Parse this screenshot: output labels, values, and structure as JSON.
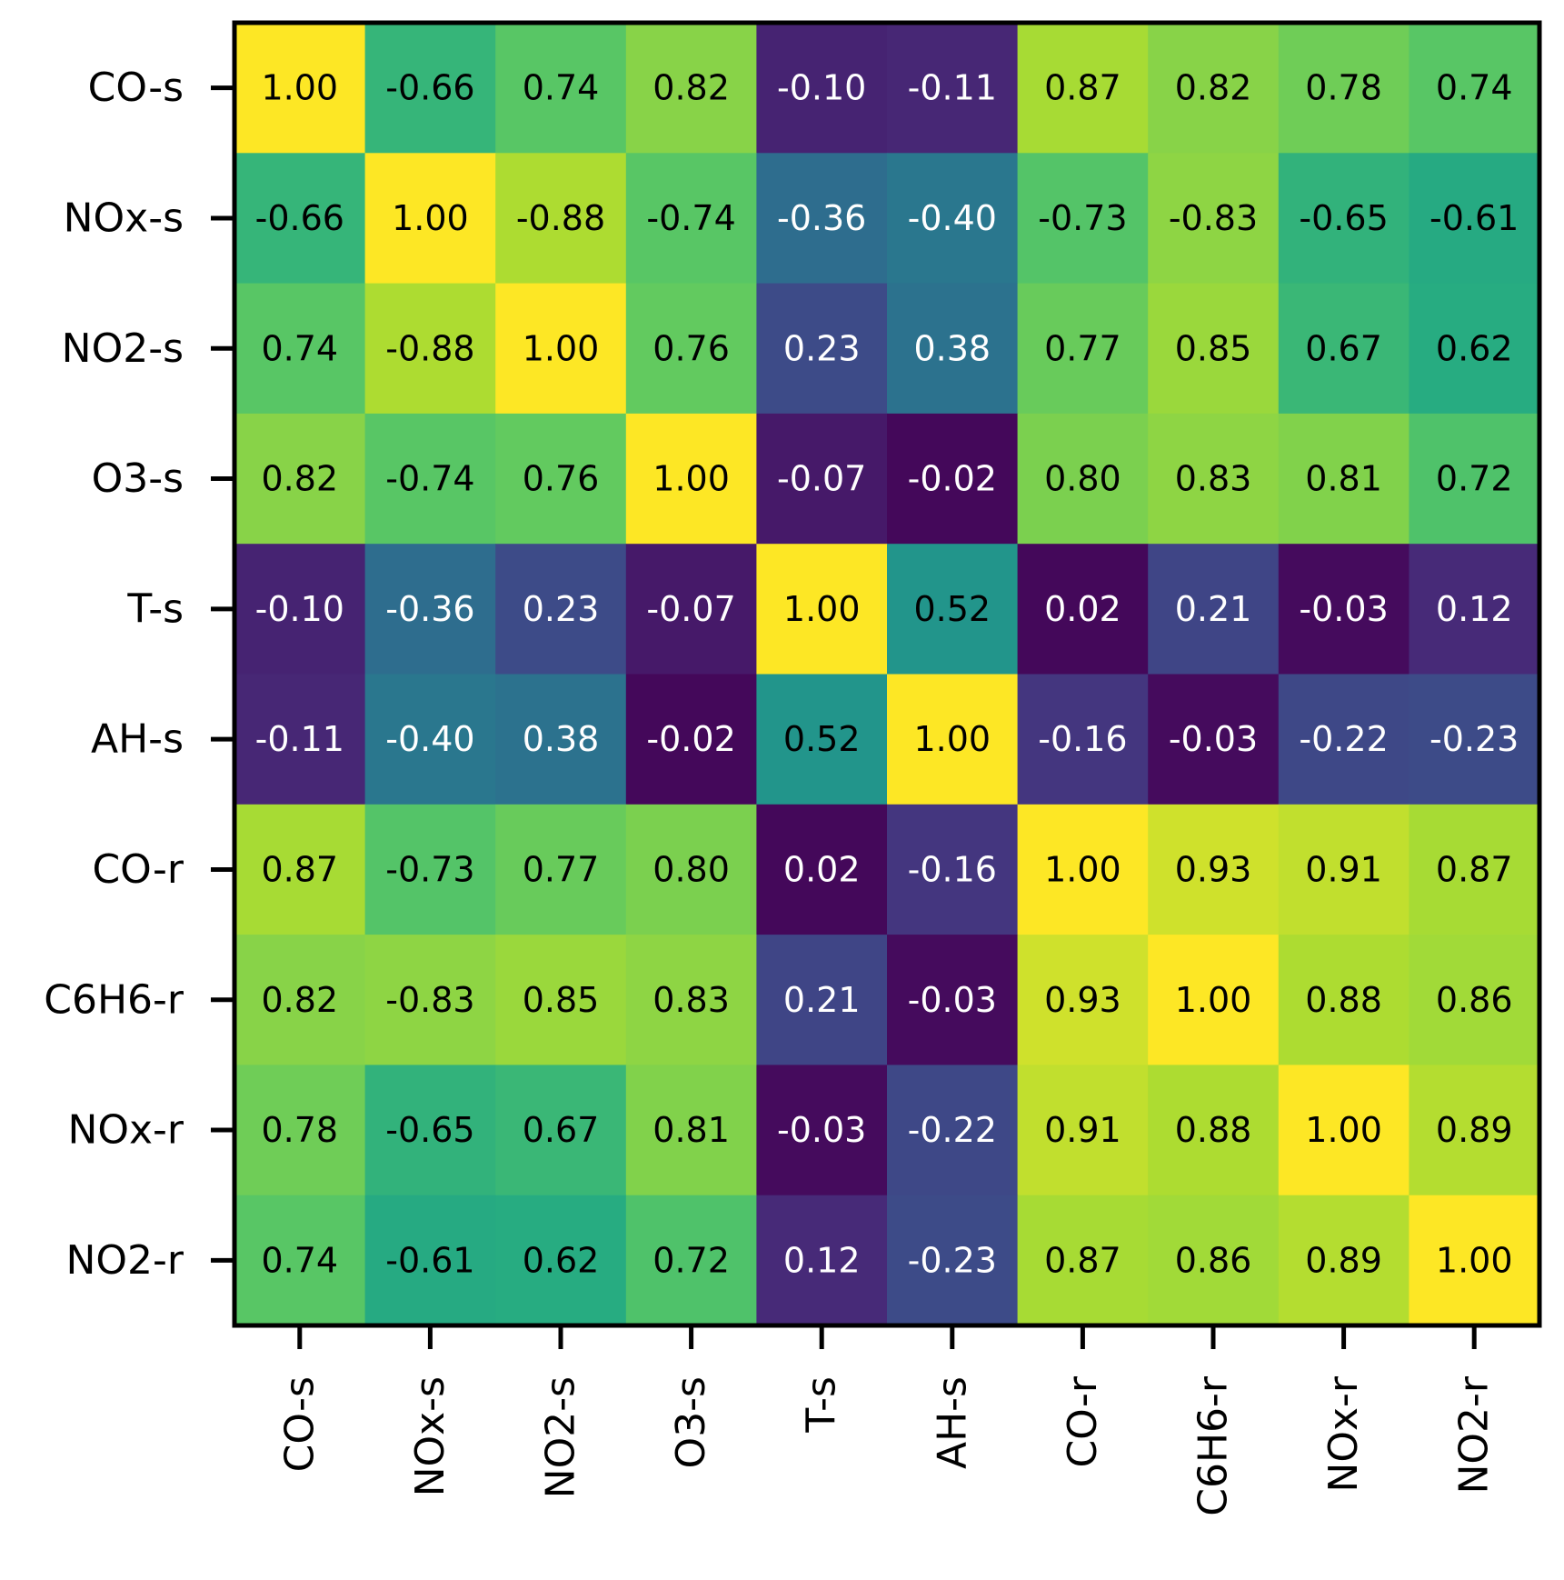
{
  "chart_data": {
    "type": "heatmap",
    "title": "",
    "xlabel": "",
    "ylabel": "",
    "row_labels": [
      "CO-s",
      "NOx-s",
      "NO2-s",
      "O3-s",
      "T-s",
      "AH-s",
      "CO-r",
      "C6H6-r",
      "NOx-r",
      "NO2-r"
    ],
    "col_labels": [
      "CO-s",
      "NOx-s",
      "NO2-s",
      "O3-s",
      "T-s",
      "AH-s",
      "CO-r",
      "C6H6-r",
      "NOx-r",
      "NO2-r"
    ],
    "values": [
      [
        1.0,
        -0.66,
        0.74,
        0.82,
        -0.1,
        -0.11,
        0.87,
        0.82,
        0.78,
        0.74
      ],
      [
        -0.66,
        1.0,
        -0.88,
        -0.74,
        -0.36,
        -0.4,
        -0.73,
        -0.83,
        -0.65,
        -0.61
      ],
      [
        0.74,
        -0.88,
        1.0,
        0.76,
        0.23,
        0.38,
        0.77,
        0.85,
        0.67,
        0.62
      ],
      [
        0.82,
        -0.74,
        0.76,
        1.0,
        -0.07,
        -0.02,
        0.8,
        0.83,
        0.81,
        0.72
      ],
      [
        -0.1,
        -0.36,
        0.23,
        -0.07,
        1.0,
        0.52,
        0.02,
        0.21,
        -0.03,
        0.12
      ],
      [
        -0.11,
        -0.4,
        0.38,
        -0.02,
        0.52,
        1.0,
        -0.16,
        -0.03,
        -0.22,
        -0.23
      ],
      [
        0.87,
        -0.73,
        0.77,
        0.8,
        0.02,
        -0.16,
        1.0,
        0.93,
        0.91,
        0.87
      ],
      [
        0.82,
        -0.83,
        0.85,
        0.83,
        0.21,
        -0.03,
        0.93,
        1.0,
        0.88,
        0.86
      ],
      [
        0.78,
        -0.65,
        0.67,
        0.81,
        -0.03,
        -0.22,
        0.91,
        0.88,
        1.0,
        0.89
      ],
      [
        0.74,
        -0.61,
        0.62,
        0.72,
        0.12,
        -0.23,
        0.87,
        0.86,
        0.89,
        1.0
      ]
    ],
    "colormap": "viridis",
    "color_metric": "absolute value",
    "vrange": [
      0,
      1
    ],
    "grid": false,
    "legend": "none",
    "x_tick_rotation": "vertical"
  }
}
